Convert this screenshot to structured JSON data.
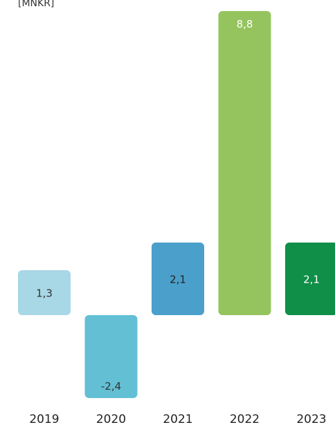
{
  "chart_data": {
    "type": "bar",
    "unit_label": "[MNKR]",
    "categories": [
      "2019",
      "2020",
      "2021",
      "2022",
      "2023"
    ],
    "values": [
      1.3,
      -2.4,
      2.1,
      8.8,
      2.1
    ],
    "value_labels": [
      "1,3",
      "-2,4",
      "2,1",
      "8,8",
      "2,1"
    ],
    "bar_colors": [
      "#a8d7e6",
      "#62bfd4",
      "#4b9fcb",
      "#95c45e",
      "#0f8f47"
    ],
    "label_colors": [
      "#333333",
      "#333333",
      "#222222",
      "#ffffff",
      "#ffffff"
    ],
    "ylim": [
      -4.5,
      9.2
    ],
    "grid": false,
    "legend": "none"
  }
}
